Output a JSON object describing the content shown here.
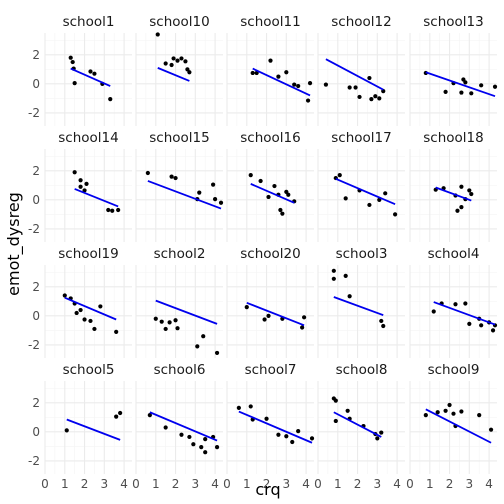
{
  "chart_data": {
    "type": "scatter",
    "xlabel": "crq",
    "ylabel": "emot_dysreg",
    "xlim": [
      0,
      4.4
    ],
    "ylim": [
      -2.9,
      3.5
    ],
    "x_ticks": [
      0,
      1,
      2,
      3,
      4
    ],
    "y_ticks": [
      -2,
      0,
      2
    ],
    "grid": true,
    "colors": {
      "points": "#000000",
      "fit_line": "#0000ee",
      "grid_major": "#ebebeb",
      "grid_minor": "#f5f5f5"
    },
    "facets": [
      {
        "label": "school1",
        "points": [
          [
            1.3,
            1.8
          ],
          [
            1.4,
            1.5
          ],
          [
            1.45,
            1.05
          ],
          [
            1.5,
            0.05
          ],
          [
            2.3,
            0.85
          ],
          [
            2.5,
            0.7
          ],
          [
            2.9,
            0.0
          ],
          [
            3.3,
            -1.05
          ]
        ],
        "fit": [
          [
            1.3,
            1.05
          ],
          [
            3.3,
            -0.15
          ]
        ]
      },
      {
        "label": "school10",
        "points": [
          [
            1.1,
            3.4
          ],
          [
            1.5,
            1.4
          ],
          [
            1.8,
            1.3
          ],
          [
            1.9,
            1.75
          ],
          [
            2.1,
            1.6
          ],
          [
            2.3,
            1.75
          ],
          [
            2.5,
            1.55
          ],
          [
            2.6,
            1.0
          ],
          [
            2.7,
            0.8
          ]
        ],
        "fit": [
          [
            1.1,
            1.1
          ],
          [
            2.7,
            0.2
          ]
        ]
      },
      {
        "label": "school11",
        "points": [
          [
            1.3,
            0.75
          ],
          [
            1.5,
            0.75
          ],
          [
            2.2,
            1.6
          ],
          [
            2.6,
            0.5
          ],
          [
            3.0,
            0.8
          ],
          [
            3.4,
            -0.05
          ],
          [
            3.6,
            -0.15
          ],
          [
            4.1,
            -1.15
          ],
          [
            4.2,
            0.05
          ]
        ],
        "fit": [
          [
            1.3,
            1.05
          ],
          [
            4.2,
            -0.8
          ]
        ]
      },
      {
        "label": "school12",
        "points": [
          [
            0.4,
            -0.05
          ],
          [
            1.6,
            -0.25
          ],
          [
            1.9,
            -0.25
          ],
          [
            2.1,
            -0.9
          ],
          [
            2.6,
            0.4
          ],
          [
            2.7,
            -1.05
          ],
          [
            2.9,
            -0.85
          ],
          [
            3.1,
            -1.0
          ],
          [
            3.3,
            -0.5
          ]
        ],
        "fit": [
          [
            0.4,
            1.7
          ],
          [
            3.3,
            -0.4
          ]
        ]
      },
      {
        "label": "school13",
        "points": [
          [
            0.8,
            0.75
          ],
          [
            1.8,
            -0.55
          ],
          [
            2.2,
            0.05
          ],
          [
            2.6,
            -0.6
          ],
          [
            2.7,
            0.3
          ],
          [
            2.8,
            0.1
          ],
          [
            3.1,
            -0.65
          ],
          [
            3.6,
            -0.1
          ],
          [
            4.3,
            -0.2
          ]
        ],
        "fit": [
          [
            0.8,
            0.8
          ],
          [
            4.3,
            -0.85
          ]
        ]
      },
      {
        "label": "school14",
        "points": [
          [
            1.5,
            1.9
          ],
          [
            1.8,
            1.35
          ],
          [
            1.8,
            0.9
          ],
          [
            2.0,
            0.65
          ],
          [
            2.1,
            1.1
          ],
          [
            3.2,
            -0.7
          ],
          [
            3.4,
            -0.75
          ],
          [
            3.7,
            -0.7
          ]
        ],
        "fit": [
          [
            1.5,
            0.75
          ],
          [
            3.7,
            -0.45
          ]
        ]
      },
      {
        "label": "school15",
        "points": [
          [
            0.6,
            1.85
          ],
          [
            1.8,
            1.6
          ],
          [
            2.0,
            1.5
          ],
          [
            3.1,
            0.05
          ],
          [
            3.2,
            0.5
          ],
          [
            3.9,
            1.05
          ],
          [
            4.0,
            0.05
          ],
          [
            4.3,
            -0.2
          ]
        ],
        "fit": [
          [
            0.6,
            1.3
          ],
          [
            4.3,
            -0.6
          ]
        ]
      },
      {
        "label": "school16",
        "points": [
          [
            1.2,
            1.7
          ],
          [
            1.7,
            1.3
          ],
          [
            2.1,
            0.2
          ],
          [
            2.4,
            0.95
          ],
          [
            2.6,
            0.35
          ],
          [
            2.7,
            -0.7
          ],
          [
            2.8,
            -0.95
          ],
          [
            3.0,
            0.55
          ],
          [
            3.1,
            0.35
          ],
          [
            3.4,
            -0.1
          ]
        ],
        "fit": [
          [
            1.2,
            1.1
          ],
          [
            3.4,
            -0.2
          ]
        ]
      },
      {
        "label": "school17",
        "points": [
          [
            0.9,
            1.5
          ],
          [
            1.1,
            1.7
          ],
          [
            1.4,
            0.1
          ],
          [
            2.1,
            0.65
          ],
          [
            2.6,
            -0.35
          ],
          [
            3.1,
            0.0
          ],
          [
            3.4,
            0.45
          ],
          [
            3.9,
            -1.0
          ]
        ],
        "fit": [
          [
            0.9,
            1.45
          ],
          [
            3.9,
            -0.3
          ]
        ]
      },
      {
        "label": "school18",
        "points": [
          [
            1.3,
            0.7
          ],
          [
            1.7,
            0.8
          ],
          [
            2.3,
            0.3
          ],
          [
            2.4,
            -0.75
          ],
          [
            2.6,
            -0.5
          ],
          [
            2.6,
            0.9
          ],
          [
            2.8,
            0.05
          ],
          [
            3.0,
            0.65
          ],
          [
            3.1,
            0.4
          ]
        ],
        "fit": [
          [
            1.3,
            0.85
          ],
          [
            3.1,
            -0.05
          ]
        ]
      },
      {
        "label": "school19",
        "points": [
          [
            1.0,
            1.4
          ],
          [
            1.3,
            1.2
          ],
          [
            1.5,
            0.85
          ],
          [
            1.6,
            0.2
          ],
          [
            1.8,
            0.4
          ],
          [
            2.0,
            -0.25
          ],
          [
            2.3,
            -0.35
          ],
          [
            2.5,
            -0.9
          ],
          [
            2.8,
            0.65
          ],
          [
            3.6,
            -1.1
          ]
        ],
        "fit": [
          [
            1.0,
            1.25
          ],
          [
            3.6,
            -0.25
          ]
        ]
      },
      {
        "label": "school2",
        "points": [
          [
            1.0,
            -0.2
          ],
          [
            1.3,
            -0.4
          ],
          [
            1.5,
            -0.9
          ],
          [
            1.7,
            -0.45
          ],
          [
            2.0,
            -0.3
          ],
          [
            2.1,
            -0.85
          ],
          [
            3.1,
            -2.1
          ],
          [
            3.4,
            -1.4
          ],
          [
            4.1,
            -2.55
          ]
        ],
        "fit": [
          [
            1.0,
            1.05
          ],
          [
            4.1,
            -0.55
          ]
        ]
      },
      {
        "label": "school20",
        "points": [
          [
            1.0,
            0.6
          ],
          [
            1.9,
            -0.25
          ],
          [
            2.1,
            0.0
          ],
          [
            2.8,
            -0.2
          ],
          [
            3.8,
            -0.8
          ],
          [
            3.9,
            -0.1
          ]
        ],
        "fit": [
          [
            1.0,
            0.9
          ],
          [
            3.9,
            -0.65
          ]
        ]
      },
      {
        "label": "school3",
        "points": [
          [
            0.8,
            3.1
          ],
          [
            0.8,
            2.55
          ],
          [
            1.4,
            2.75
          ],
          [
            1.6,
            1.35
          ],
          [
            3.2,
            -0.35
          ],
          [
            3.3,
            -0.7
          ]
        ],
        "fit": [
          [
            0.8,
            1.3
          ],
          [
            3.3,
            0.05
          ]
        ]
      },
      {
        "label": "school4",
        "points": [
          [
            1.2,
            0.3
          ],
          [
            1.6,
            0.85
          ],
          [
            2.3,
            0.8
          ],
          [
            2.8,
            0.85
          ],
          [
            3.0,
            -0.55
          ],
          [
            3.5,
            -0.2
          ],
          [
            3.6,
            -0.65
          ],
          [
            4.0,
            -0.45
          ],
          [
            4.2,
            -1.0
          ],
          [
            4.3,
            -0.65
          ]
        ],
        "fit": [
          [
            1.2,
            0.95
          ],
          [
            4.3,
            -0.6
          ]
        ]
      },
      {
        "label": "school5",
        "points": [
          [
            1.1,
            0.1
          ],
          [
            3.6,
            1.05
          ],
          [
            3.8,
            1.3
          ]
        ],
        "fit": [
          [
            1.1,
            0.85
          ],
          [
            3.8,
            -0.55
          ]
        ]
      },
      {
        "label": "school6",
        "points": [
          [
            0.7,
            1.15
          ],
          [
            1.5,
            0.3
          ],
          [
            2.3,
            -0.2
          ],
          [
            2.7,
            -0.35
          ],
          [
            2.9,
            -0.85
          ],
          [
            3.3,
            -1.05
          ],
          [
            3.5,
            -1.4
          ],
          [
            3.5,
            -0.5
          ],
          [
            3.9,
            -0.35
          ],
          [
            4.1,
            -1.05
          ]
        ],
        "fit": [
          [
            0.7,
            1.35
          ],
          [
            4.1,
            -0.6
          ]
        ]
      },
      {
        "label": "school7",
        "points": [
          [
            0.6,
            1.65
          ],
          [
            1.2,
            1.75
          ],
          [
            1.3,
            0.85
          ],
          [
            2.0,
            0.9
          ],
          [
            2.6,
            -0.2
          ],
          [
            3.0,
            -0.3
          ],
          [
            3.3,
            -0.7
          ],
          [
            3.6,
            0.05
          ],
          [
            4.3,
            -0.45
          ]
        ],
        "fit": [
          [
            0.6,
            1.4
          ],
          [
            4.3,
            -0.75
          ]
        ]
      },
      {
        "label": "school8",
        "points": [
          [
            0.8,
            2.3
          ],
          [
            0.9,
            2.15
          ],
          [
            0.9,
            0.75
          ],
          [
            1.5,
            1.45
          ],
          [
            1.6,
            0.9
          ],
          [
            2.3,
            0.4
          ],
          [
            2.9,
            -0.15
          ],
          [
            3.0,
            -0.45
          ],
          [
            3.2,
            -0.05
          ]
        ],
        "fit": [
          [
            0.8,
            1.35
          ],
          [
            3.2,
            -0.35
          ]
        ]
      },
      {
        "label": "school9",
        "points": [
          [
            0.8,
            1.15
          ],
          [
            1.4,
            1.35
          ],
          [
            1.8,
            1.45
          ],
          [
            2.0,
            1.85
          ],
          [
            2.2,
            1.25
          ],
          [
            2.3,
            0.4
          ],
          [
            2.6,
            1.4
          ],
          [
            3.5,
            1.15
          ],
          [
            4.1,
            0.15
          ]
        ],
        "fit": [
          [
            0.8,
            1.55
          ],
          [
            4.1,
            -0.75
          ]
        ]
      }
    ]
  }
}
